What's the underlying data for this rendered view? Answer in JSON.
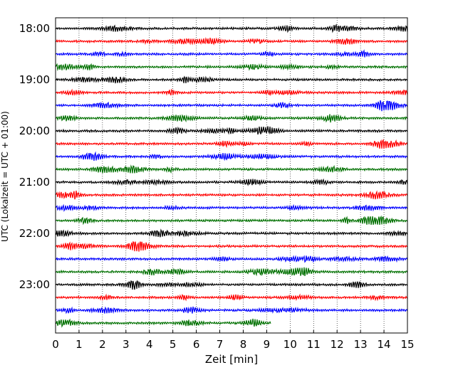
{
  "chart_data": {
    "type": "line",
    "title": "",
    "xlabel": "Zeit  [min]",
    "ylabel": "UTC (Lokalzeit = UTC + 01:00)",
    "xlim": [
      0,
      15
    ],
    "x_ticks": [
      "0",
      "1",
      "2",
      "3",
      "4",
      "5",
      "6",
      "7",
      "8",
      "9",
      "10",
      "11",
      "12",
      "13",
      "14",
      "15"
    ],
    "y_ticks": [
      {
        "label": "18:00",
        "row": 0
      },
      {
        "label": "19:00",
        "row": 4
      },
      {
        "label": "20:00",
        "row": 8
      },
      {
        "label": "21:00",
        "row": 12
      },
      {
        "label": "22:00",
        "row": 16
      },
      {
        "label": "23:00",
        "row": 20
      }
    ],
    "vertical_grid": "dotted",
    "trace_interval_min": 15,
    "trace_colors": [
      "#000000",
      "#ff0000",
      "#0000ff",
      "#007000"
    ],
    "traces": [
      {
        "start": "18:00",
        "end_min": 15
      },
      {
        "start": "18:15",
        "end_min": 15
      },
      {
        "start": "18:30",
        "end_min": 15
      },
      {
        "start": "18:45",
        "end_min": 15
      },
      {
        "start": "19:00",
        "end_min": 15
      },
      {
        "start": "19:15",
        "end_min": 15
      },
      {
        "start": "19:30",
        "end_min": 15
      },
      {
        "start": "19:45",
        "end_min": 15
      },
      {
        "start": "20:00",
        "end_min": 15
      },
      {
        "start": "20:15",
        "end_min": 15
      },
      {
        "start": "20:30",
        "end_min": 15
      },
      {
        "start": "20:45",
        "end_min": 15
      },
      {
        "start": "21:00",
        "end_min": 15
      },
      {
        "start": "21:15",
        "end_min": 15
      },
      {
        "start": "21:30",
        "end_min": 15
      },
      {
        "start": "21:45",
        "end_min": 15
      },
      {
        "start": "22:00",
        "end_min": 15
      },
      {
        "start": "22:15",
        "end_min": 15
      },
      {
        "start": "22:30",
        "end_min": 15
      },
      {
        "start": "22:45",
        "end_min": 15
      },
      {
        "start": "23:00",
        "end_min": 15
      },
      {
        "start": "23:15",
        "end_min": 15
      },
      {
        "start": "23:30",
        "end_min": 15
      },
      {
        "start": "23:45",
        "end_min": 9.2
      }
    ]
  }
}
